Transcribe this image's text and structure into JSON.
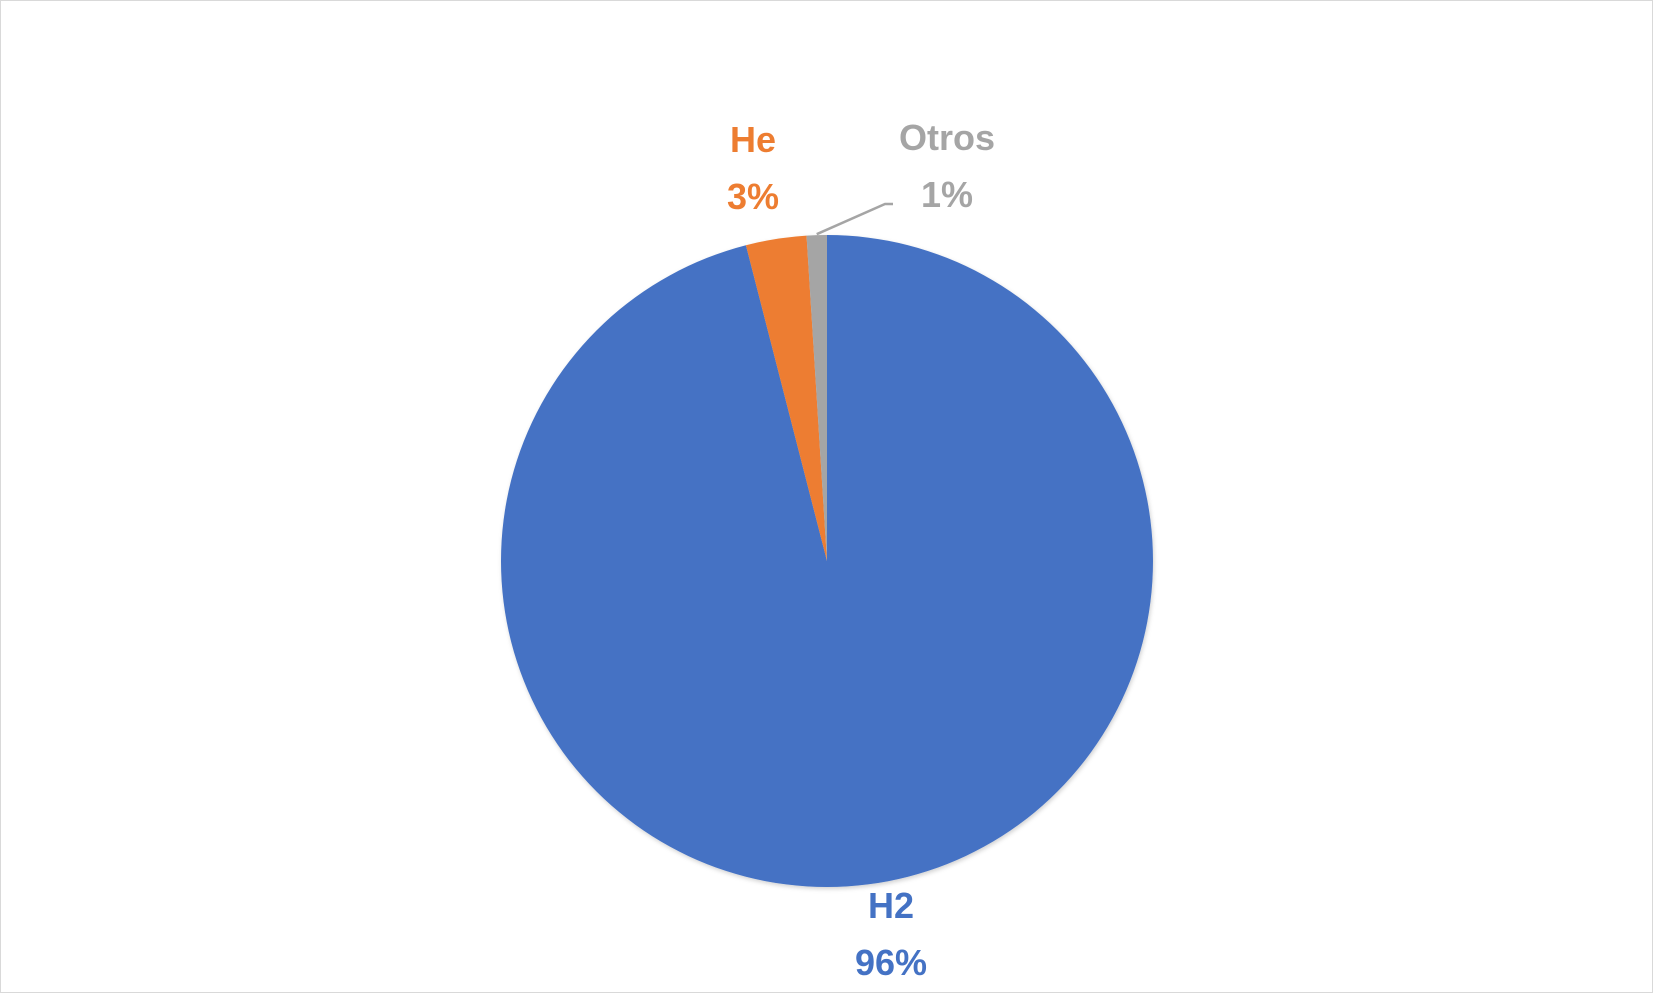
{
  "chart_data": {
    "type": "pie",
    "title": "",
    "categories": [
      "H2",
      "He",
      "Otros"
    ],
    "values": [
      96,
      3,
      1
    ],
    "value_labels": [
      "96%",
      "3%",
      "1%"
    ],
    "colors": [
      "#4472C4",
      "#ED7D31",
      "#A5A5A5"
    ],
    "start_angle_deg": 0,
    "direction": "clockwise",
    "legend": "none",
    "data_labels": "outside (category name and percentage), colored like the slice; leader line for Otros"
  }
}
